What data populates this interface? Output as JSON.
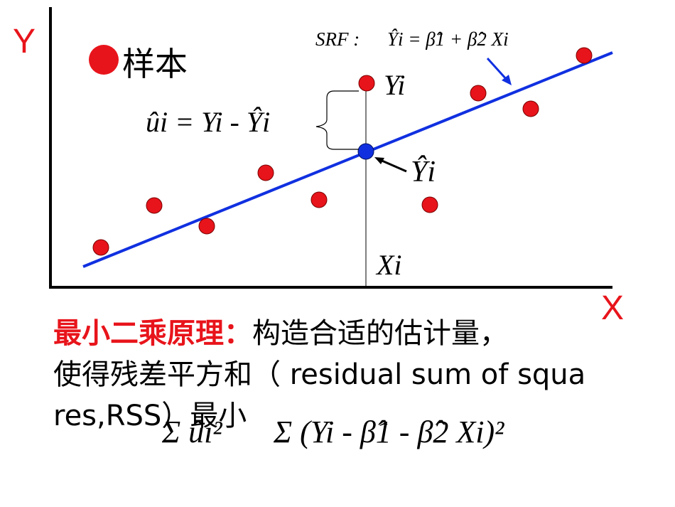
{
  "diagram": {
    "axis_y_label": "Y",
    "axis_x_label": "X",
    "legend_label": "样本",
    "srf_label": "SRF :",
    "srf_formula": "Ŷi = β̂1 + β̂2 Xi",
    "residual_formula": "ûi = Yi - Ŷi",
    "point_label_y": "Yi",
    "point_label_yhat": "Ŷi",
    "point_label_x": "Xi",
    "colors": {
      "sample": "#e8141b",
      "fitted": "#1030e0",
      "line": "#1030e0",
      "heading": "#e8141b"
    },
    "icons": [
      "red-dot-icon",
      "blue-dot-icon",
      "arrow-icon",
      "brace-icon"
    ]
  },
  "text": {
    "heading": "最小二乘原理：",
    "line1_rest": "构造合适的估计量，",
    "line2": "使得残差平方和（ residual sum of squa",
    "line3": "res,RSS）最小",
    "formula_sum_left": "Σ ûi²",
    "formula_sum_right": "Σ (Yi - β̂1 - β̂2 Xi)²"
  }
}
